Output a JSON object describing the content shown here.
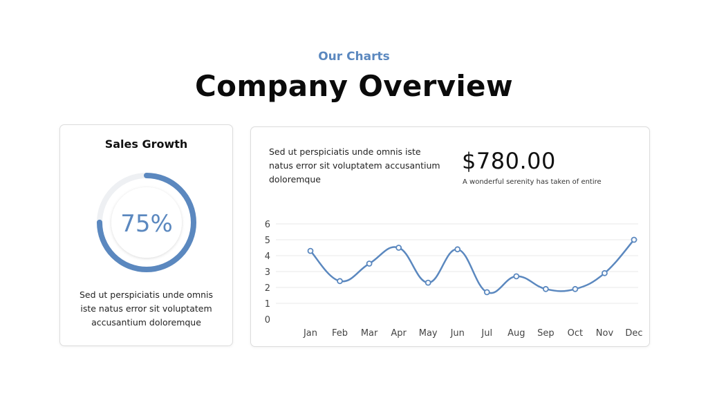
{
  "header": {
    "eyebrow": "Our Charts",
    "title": "Company Overview"
  },
  "left_card": {
    "title": "Sales Growth",
    "gauge_percent": 75,
    "gauge_label": "75%",
    "description": "Sed ut perspiciatis unde omnis iste natus error sit voluptatem accusantium doloremque"
  },
  "right_card": {
    "description": "Sed ut perspiciatis unde omnis iste natus error sit voluptatem accusantium doloremque",
    "price": "$780.00",
    "price_caption": "A wonderful serenity has taken of entire"
  },
  "colors": {
    "accent": "#5b88bf",
    "gauge_track": "#eef0f3",
    "grid": "#e9e9e9",
    "axis_text": "#444444"
  },
  "chart_data": {
    "type": "line",
    "categories": [
      "Jan",
      "Feb",
      "Mar",
      "Apr",
      "May",
      "Jun",
      "Jul",
      "Aug",
      "Sep",
      "Oct",
      "Nov",
      "Dec"
    ],
    "series": [
      {
        "values": [
          4.3,
          2.4,
          3.5,
          4.5,
          2.3,
          4.4,
          1.7,
          2.7,
          1.9,
          1.9,
          2.9,
          5.0
        ]
      }
    ],
    "yticks": [
      "0",
      "1",
      "2",
      "3",
      "4",
      "5",
      "6"
    ],
    "ylim": [
      0,
      6
    ],
    "grid": true,
    "smooth": true,
    "markers": "hollow-circle"
  }
}
